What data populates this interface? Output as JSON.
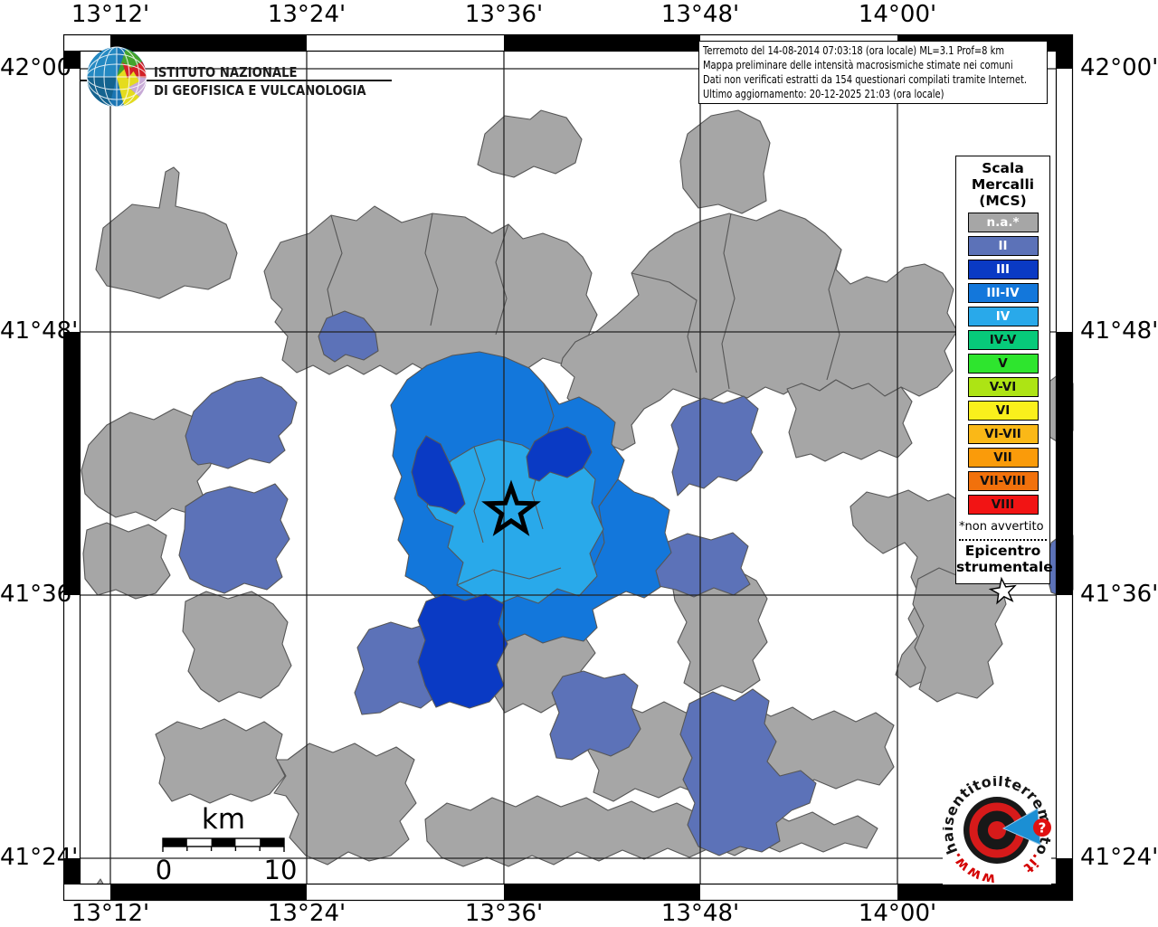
{
  "title_box": {
    "lines": [
      "Terremoto del 14-08-2014 07:03:18 (ora locale) ML=3.1 Prof=8 km",
      "Mappa preliminare delle intensità macrosismiche stimate nei comuni",
      "Dati non verificati estratti da 154 questionari compilati tramite Internet.",
      "Ultimo aggiornamento: 20-12-2025 21:03 (ora locale)"
    ]
  },
  "ingv_logo": {
    "line1": "ISTITUTO NAZIONALE",
    "line2": "DI GEOFISICA E VULCANOLOGIA"
  },
  "axes": {
    "top": [
      "13°12'",
      "13°24'",
      "13°36'",
      "13°48'",
      "14°00'"
    ],
    "bottom": [
      "13°12'",
      "13°24'",
      "13°36'",
      "13°48'",
      "14°00'"
    ],
    "left": [
      "42°00'",
      "41°48'",
      "41°36'",
      "41°24'"
    ],
    "right": [
      "42°00'",
      "41°48'",
      "41°36'",
      "41°24'"
    ]
  },
  "legend": {
    "title_lines": [
      "Scala",
      "Mercalli",
      "(MCS)"
    ],
    "items": [
      {
        "key": "na",
        "label": "n.a.*",
        "color": "#A6A6A6",
        "text_color": "#FFFFFF"
      },
      {
        "key": "II",
        "label": "II",
        "color": "#5C72B8",
        "text_color": "#FFFFFF"
      },
      {
        "key": "III",
        "label": "III",
        "color": "#0A3AC4",
        "text_color": "#FFFFFF"
      },
      {
        "key": "III-IV",
        "label": "III-IV",
        "color": "#1377DB",
        "text_color": "#FFFFFF"
      },
      {
        "key": "IV",
        "label": "IV",
        "color": "#29A9EA",
        "text_color": "#FFFFFF"
      },
      {
        "key": "IV-V",
        "label": "IV-V",
        "color": "#07CA7A",
        "text_color": "#111111"
      },
      {
        "key": "V",
        "label": "V",
        "color": "#2EE52E",
        "text_color": "#111111"
      },
      {
        "key": "V-VI",
        "label": "V-VI",
        "color": "#ADE414",
        "text_color": "#111111"
      },
      {
        "key": "VI",
        "label": "VI",
        "color": "#FAF01C",
        "text_color": "#111111"
      },
      {
        "key": "VI-VII",
        "label": "VI-VII",
        "color": "#FAB817",
        "text_color": "#111111"
      },
      {
        "key": "VII",
        "label": "VII",
        "color": "#FA9B0A",
        "text_color": "#111111"
      },
      {
        "key": "VII-VIII",
        "label": "VII-VIII",
        "color": "#F1710C",
        "text_color": "#111111"
      },
      {
        "key": "VIII",
        "label": "VIII",
        "color": "#F21414",
        "text_color": "#111111"
      }
    ],
    "footnote": "*non avvertito",
    "epicenter_lines": [
      "Epicentro",
      "strumentale"
    ]
  },
  "scale_bar": {
    "title": "km",
    "start": "0",
    "end": "10"
  },
  "watermark": {
    "url_prefix": "www.",
    "url_main": "haisentitoilterremoto",
    "url_suffix": ".it",
    "badge": "?"
  },
  "map": {
    "intensities_present": [
      "n.a.",
      "II",
      "III",
      "III-IV",
      "IV"
    ],
    "epicenter_symbol": "star",
    "background": "#FFFFFF",
    "border_color": "#565656"
  }
}
